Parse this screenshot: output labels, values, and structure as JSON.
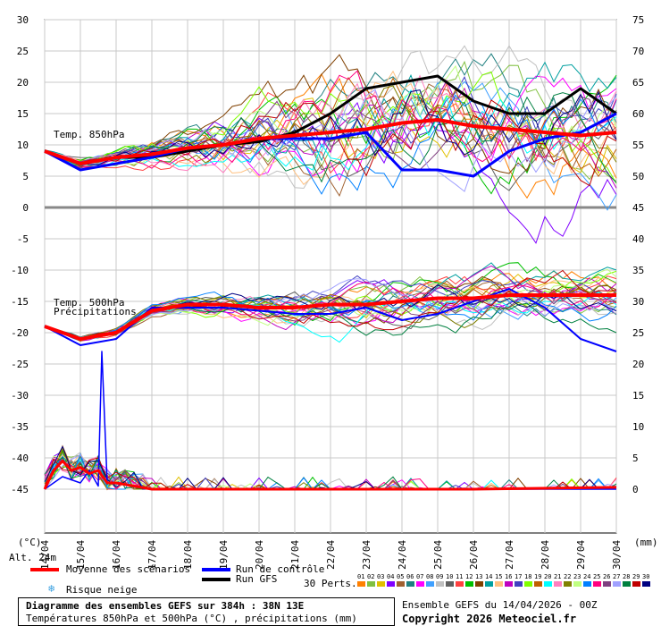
{
  "chart_data": {
    "type": "line",
    "title": "Diagramme des ensembles GEFS sur 384h : 38N 13E",
    "subtitle": "Températures 850hPa et 500hPa (°C) , précipitations (mm)",
    "run_info": "Ensemble GEFS du 14/04/2026 - 00Z",
    "copyright": "Copyright 2026 Meteociel.fr",
    "left_axis_unit": "(°C)",
    "right_axis_unit": "(mm)",
    "altitude_label": "Alt. 24m",
    "y_left_ticks": [
      30,
      25,
      20,
      15,
      10,
      5,
      0,
      -5,
      -10,
      -15,
      -20,
      -25,
      -30,
      -35,
      -40,
      -45
    ],
    "y_right_ticks": [
      75,
      70,
      65,
      60,
      55,
      50,
      45,
      40,
      35,
      30,
      25,
      20,
      15,
      10,
      5,
      0
    ],
    "ylim_left": [
      -45,
      30
    ],
    "ylim_right": [
      0,
      75
    ],
    "x_labels": [
      "14/04",
      "15/04",
      "16/04",
      "17/04",
      "18/04",
      "19/04",
      "20/04",
      "21/04",
      "22/04",
      "23/04",
      "24/04",
      "25/04",
      "26/04",
      "27/04",
      "28/04",
      "29/04",
      "30/04"
    ],
    "grid": true,
    "panel_labels": [
      "Temp. 850hPa",
      "Temp. 500hPa",
      "Précipitations"
    ],
    "t850_mean": {
      "x": [
        0,
        1,
        2,
        3,
        4,
        5,
        6,
        7,
        8,
        9,
        10,
        11,
        12,
        13,
        14,
        15,
        16
      ],
      "y": [
        9,
        7,
        8,
        8.5,
        9.5,
        10,
        11,
        11.5,
        12,
        12.5,
        13.5,
        14,
        13,
        12.5,
        12,
        11.5,
        12
      ]
    },
    "t850_control": {
      "x": [
        0,
        1,
        2,
        3,
        4,
        5,
        6,
        7,
        8,
        9,
        10,
        11,
        12,
        13,
        14,
        15,
        16
      ],
      "y": [
        9,
        6,
        7,
        8,
        9.5,
        10,
        11,
        11,
        11,
        12,
        6,
        6,
        5,
        9,
        11,
        12,
        15
      ]
    },
    "t850_gfs": {
      "x": [
        0,
        1,
        2,
        3,
        4,
        5,
        6,
        7,
        8,
        9,
        10,
        11,
        12,
        13,
        14,
        15,
        16
      ],
      "y": [
        9,
        7,
        8,
        8,
        9,
        10,
        10.5,
        12,
        15,
        19,
        20,
        21,
        17,
        15,
        15,
        19,
        15
      ]
    },
    "t500_mean": {
      "x": [
        0,
        1,
        2,
        3,
        4,
        5,
        6,
        7,
        8,
        9,
        10,
        11,
        12,
        13,
        14,
        15,
        16
      ],
      "y": [
        -19,
        -21,
        -20,
        -16.5,
        -15.5,
        -15.5,
        -16,
        -16,
        -15.5,
        -15.5,
        -15,
        -14.5,
        -14.5,
        -14,
        -14,
        -14,
        -14
      ]
    },
    "t500_control": {
      "x": [
        0,
        1,
        2,
        3,
        4,
        5,
        6,
        7,
        8,
        9,
        10,
        11,
        12,
        13,
        14,
        15,
        16
      ],
      "y": [
        -19,
        -22,
        -21,
        -16,
        -16,
        -16,
        -16.5,
        -17,
        -17,
        -16,
        -18,
        -17,
        -15,
        -13,
        -16,
        -21,
        -23
      ]
    },
    "precip_mean": {
      "x": [
        0,
        0.25,
        0.5,
        0.75,
        1,
        1.25,
        1.5,
        1.75,
        2,
        2.5,
        3,
        4,
        8,
        12,
        16
      ],
      "y": [
        0,
        3,
        4.5,
        3,
        3.5,
        2.5,
        3,
        1,
        1,
        0.5,
        0,
        0,
        0,
        0,
        0.3
      ]
    },
    "precip_control": {
      "x": [
        0,
        0.5,
        1,
        1.25,
        1.5,
        1.6,
        1.75,
        2,
        3,
        16
      ],
      "y": [
        0,
        2,
        1,
        3,
        0.5,
        22,
        1,
        1,
        0,
        0
      ]
    },
    "legend": {
      "mean": "Moyenne des scénarios",
      "control": "Run de contrôle",
      "gfs": "Run GFS",
      "snow": "Risque neige",
      "perts": "30 Perts."
    },
    "pert_labels": [
      "01",
      "02",
      "03",
      "04",
      "05",
      "06",
      "07",
      "08",
      "09",
      "10",
      "11",
      "12",
      "13",
      "14",
      "15",
      "16",
      "17",
      "18",
      "19",
      "20",
      "21",
      "22",
      "23",
      "24",
      "25",
      "26",
      "27",
      "28",
      "29",
      "30"
    ],
    "colors": {
      "mean": "#ff0000",
      "control": "#0000ff",
      "gfs": "#000000",
      "grid": "#c8c8c8",
      "perts": [
        "#ff8000",
        "#80c040",
        "#e0c000",
        "#8000ff",
        "#a06030",
        "#208080",
        "#ff00ff",
        "#40a0ff",
        "#c0c0c0",
        "#606060",
        "#ff4040",
        "#00c000",
        "#804000",
        "#00a0a0",
        "#ffc080",
        "#c000c0",
        "#4040c0",
        "#80ff00",
        "#c06000",
        "#00ffff",
        "#ff80c0",
        "#808000",
        "#c0ff80",
        "#0080ff",
        "#ff0080",
        "#804080",
        "#a0a0ff",
        "#008040",
        "#c00000",
        "#000080"
      ]
    }
  }
}
